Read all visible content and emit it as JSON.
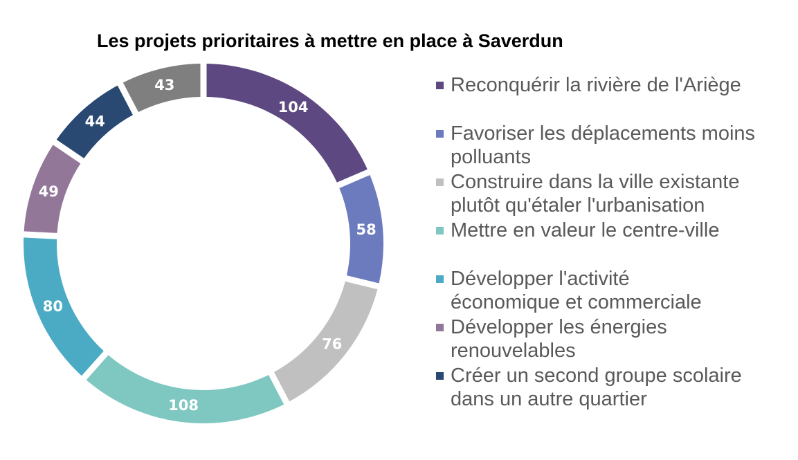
{
  "chart_data": {
    "type": "pie",
    "title": "Les projets prioritaires à mettre en place à Saverdun",
    "categories": [
      "Reconquérir la rivière de l'Ariège",
      "Favoriser les déplacements moins polluants",
      "Construire dans la ville existante plutôt qu'étaler l'urbanisation",
      "Mettre en valeur le centre-ville",
      "Développer l'activité économique et commerciale",
      "Développer les énergies renouvelables",
      "Créer un second groupe scolaire dans un autre quartier",
      ""
    ],
    "values": [
      104,
      58,
      76,
      108,
      80,
      49,
      44,
      43
    ],
    "value_labels": [
      "104",
      "58",
      "76",
      "108",
      "80",
      "49",
      "44",
      "43"
    ],
    "colors": [
      "#5e4881",
      "#6c7bbd",
      "#c0c0c0",
      "#7ec8c1",
      "#4babc4",
      "#937799",
      "#294872",
      "#7f7f7f"
    ],
    "legend_lines": [
      [
        "Reconquérir la rivière de l'Ariège"
      ],
      [
        "Favoriser les déplacements moins",
        "polluants"
      ],
      [
        "Construire dans la ville existante",
        "plutôt qu'étaler l'urbanisation"
      ],
      [
        "Mettre en valeur le centre-ville"
      ],
      [
        "Développer l'activité",
        "économique et commerciale"
      ],
      [
        "Développer les énergies",
        "renouvelables"
      ],
      [
        "Créer un second groupe scolaire",
        "dans un autre quartier"
      ]
    ],
    "legend_position": "right",
    "style": "donut"
  }
}
